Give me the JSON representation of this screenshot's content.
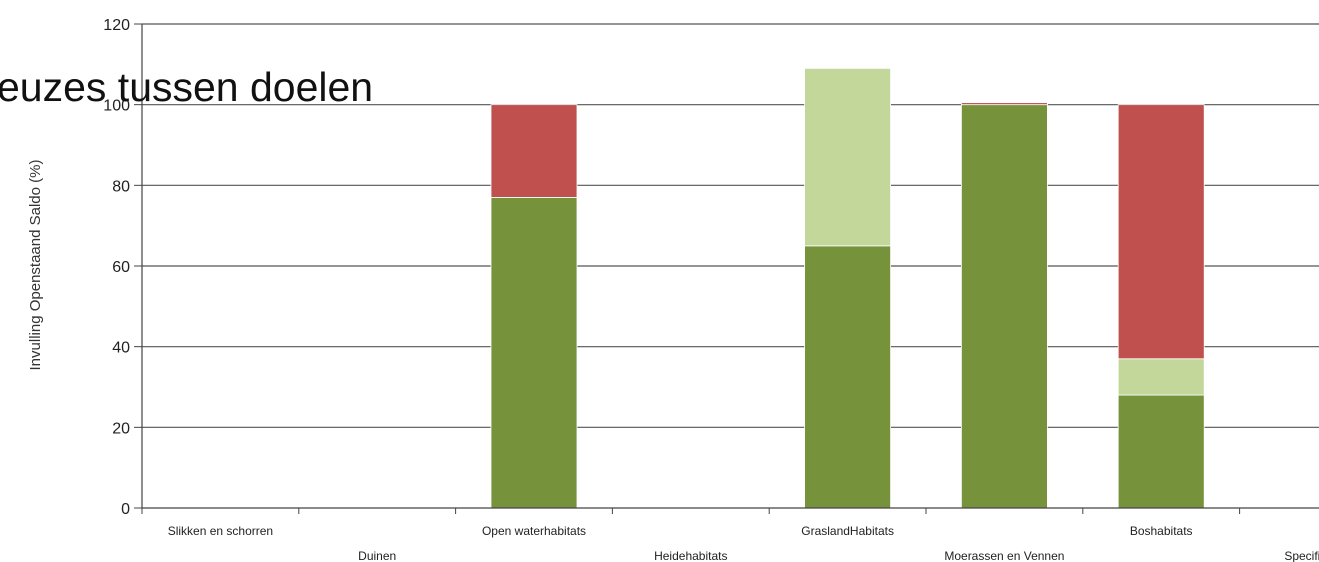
{
  "chart_data": {
    "type": "bar",
    "stacked": true,
    "overlay_title": "euzes tussen doelen",
    "ylabel": "Invulling Openstaand Saldo (%)",
    "ylim": [
      0,
      120
    ],
    "yticks": [
      0,
      20,
      40,
      60,
      80,
      100,
      120
    ],
    "grid": true,
    "categories": [
      "Slikken en schorren",
      "Duinen",
      "Open waterhabitats",
      "Heidehabitats",
      "GraslandHabitats",
      "Moerassen en Vennen",
      "Boshabitats",
      "Specifiek Do"
    ],
    "series": [
      {
        "color": "#76933c",
        "values": [
          0,
          0,
          77,
          0,
          65,
          100,
          28,
          0
        ]
      },
      {
        "color": "#c4d79b",
        "values": [
          0,
          0,
          0,
          0,
          44,
          0,
          9,
          0
        ]
      },
      {
        "color": "#c0504d",
        "values": [
          0,
          0,
          23,
          0,
          0,
          0.5,
          63,
          0
        ]
      }
    ]
  }
}
